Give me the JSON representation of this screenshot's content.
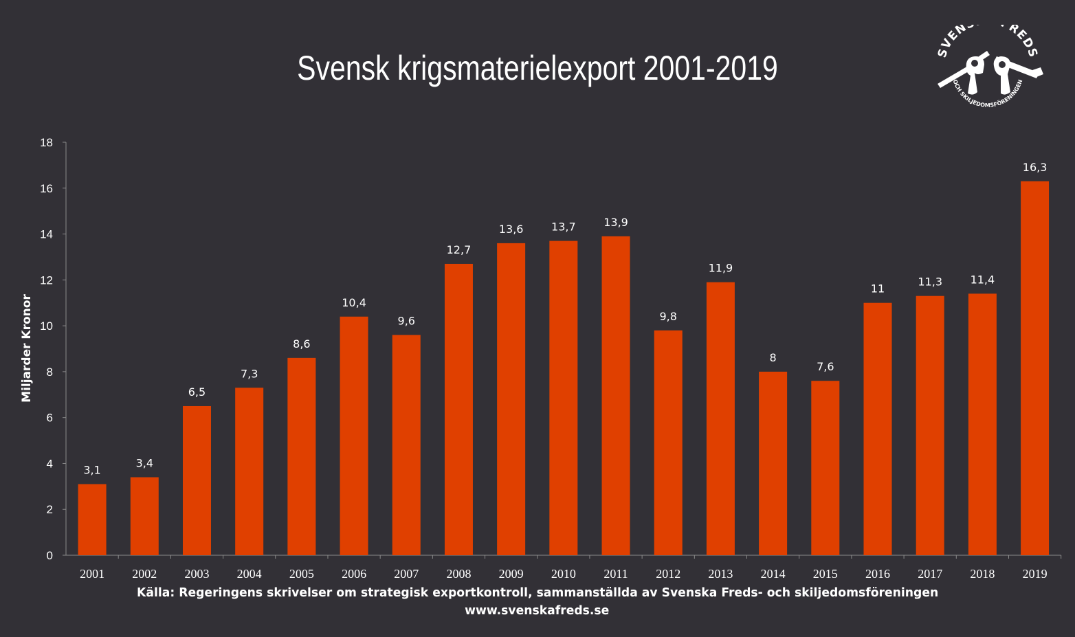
{
  "chart_data": {
    "type": "bar",
    "title": "Svensk krigsmaterielexport  2001-2019",
    "xlabel": "",
    "ylabel": "Miljarder Kronor",
    "ylim": [
      0,
      18
    ],
    "yticks": [
      0,
      2,
      4,
      6,
      8,
      10,
      12,
      14,
      16,
      18
    ],
    "grid": false,
    "categories": [
      "2001",
      "2002",
      "2003",
      "2004",
      "2005",
      "2006",
      "2007",
      "2008",
      "2009",
      "2010",
      "2011",
      "2012",
      "2013",
      "2014",
      "2015",
      "2016",
      "2017",
      "2018",
      "2019"
    ],
    "values": [
      3.1,
      3.4,
      6.5,
      7.3,
      8.6,
      10.4,
      9.6,
      12.7,
      13.6,
      13.7,
      13.9,
      9.8,
      11.9,
      8,
      7.6,
      11,
      11.3,
      11.4,
      16.3
    ],
    "value_labels": [
      "3,1",
      "3,4",
      "6,5",
      "7,3",
      "8,6",
      "10,4",
      "9,6",
      "12,7",
      "13,6",
      "13,7",
      "13,9",
      "9,8",
      "11,9",
      "8",
      "7,6",
      "11",
      "11,3",
      "11,4",
      "16,3"
    ],
    "bar_color": "#e04000"
  },
  "source_text": "Källa: Regeringens skrivelser om strategisk exportkontroll, sammanställda av Svenska Freds- och skiljedomsföreningen",
  "url_text": "www.svenskafreds.se",
  "logo": {
    "top_text": "SVENSKA FREDS",
    "bottom_text": "OCH SKILJEDOMSFÖRENINGEN",
    "icon": "broken-rifle-fists-icon"
  },
  "colors": {
    "background": "#323036",
    "bar": "#e04000",
    "text": "#ffffff",
    "axis": "#8a8a8a"
  }
}
